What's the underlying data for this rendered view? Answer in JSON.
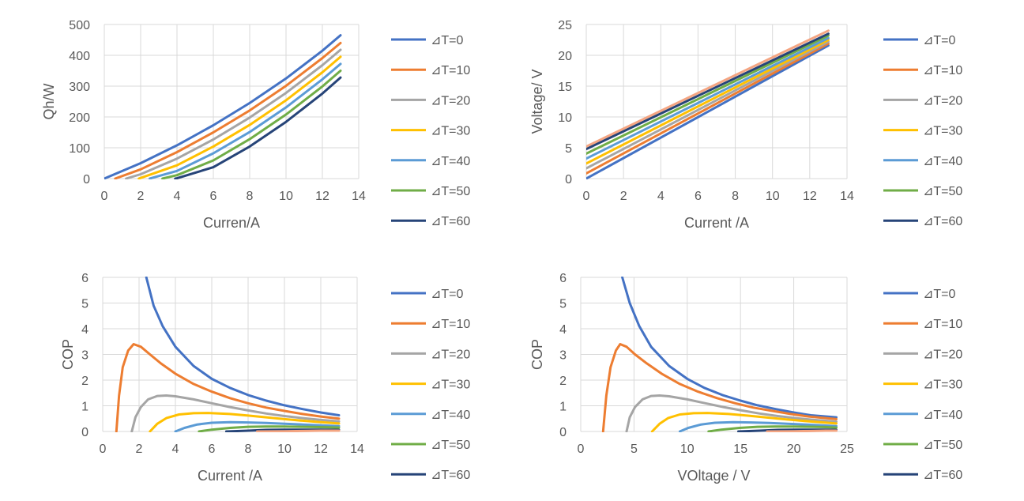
{
  "colors": {
    "dT0": "#4472C4",
    "dT10": "#ED7D31",
    "dT20": "#A5A5A5",
    "dT30": "#FFC000",
    "dT40": "#5B9BD5",
    "dT50": "#70AD47",
    "dT60": "#264478",
    "extra": "#F4A582",
    "grid": "#D9D9D9",
    "text": "#595959"
  },
  "chart_data": [
    {
      "type": "line",
      "title": "",
      "xlabel": "Curren/A",
      "ylabel": "Qh/W",
      "xlim": [
        0,
        14
      ],
      "ylim": [
        0,
        500
      ],
      "xticks": [
        "0",
        "2",
        "4",
        "6",
        "8",
        "10",
        "12",
        "14"
      ],
      "yticks": [
        "0",
        "100",
        "200",
        "300",
        "400",
        "500"
      ],
      "legend_position": "right",
      "series": [
        {
          "name": "⊿T=0",
          "color": "#4472C4",
          "x": [
            0,
            2,
            4,
            6,
            8,
            10,
            12,
            13
          ],
          "y": [
            0,
            50,
            108,
            173,
            245,
            325,
            415,
            465
          ]
        },
        {
          "name": "⊿T=10",
          "color": "#ED7D31",
          "x": [
            0.6,
            2,
            4,
            6,
            8,
            10,
            12,
            13
          ],
          "y": [
            0,
            30,
            86,
            150,
            221,
            301,
            391,
            440
          ]
        },
        {
          "name": "⊿T=20",
          "color": "#A5A5A5",
          "x": [
            1.2,
            2,
            4,
            6,
            8,
            10,
            12,
            13
          ],
          "y": [
            0,
            14,
            65,
            127,
            198,
            278,
            368,
            418
          ]
        },
        {
          "name": "⊿T=30",
          "color": "#FFC000",
          "x": [
            1.9,
            2,
            4,
            6,
            8,
            10,
            12,
            13
          ],
          "y": [
            0,
            2,
            43,
            104,
            174,
            254,
            345,
            395
          ]
        },
        {
          "name": "⊿T=40",
          "color": "#5B9BD5",
          "x": [
            2.5,
            4,
            6,
            8,
            10,
            12,
            13
          ],
          "y": [
            0,
            25,
            82,
            151,
            231,
            322,
            372
          ]
        },
        {
          "name": "⊿T=50",
          "color": "#70AD47",
          "x": [
            3.2,
            4,
            6,
            8,
            10,
            12,
            13
          ],
          "y": [
            0,
            11,
            59,
            128,
            208,
            299,
            350
          ]
        },
        {
          "name": "⊿T=60",
          "color": "#264478",
          "x": [
            3.9,
            4,
            6,
            8,
            10,
            12,
            13
          ],
          "y": [
            0,
            1,
            37,
            104,
            184,
            276,
            328
          ]
        }
      ]
    },
    {
      "type": "line",
      "title": "",
      "xlabel": "Current /A",
      "ylabel": "Voltage/ V",
      "xlim": [
        0,
        14
      ],
      "ylim": [
        0,
        25
      ],
      "xticks": [
        "0",
        "2",
        "4",
        "6",
        "8",
        "10",
        "12",
        "14"
      ],
      "yticks": [
        "0",
        "5",
        "10",
        "15",
        "20",
        "25"
      ],
      "legend_position": "right",
      "series": [
        {
          "name": "⊿T=0",
          "color": "#4472C4",
          "x": [
            0,
            13
          ],
          "y": [
            0,
            21.6
          ]
        },
        {
          "name": "⊿T=10",
          "color": "#ED7D31",
          "x": [
            0,
            13
          ],
          "y": [
            0.85,
            21.9
          ]
        },
        {
          "name": "⊿T=20",
          "color": "#A5A5A5",
          "x": [
            0,
            13
          ],
          "y": [
            1.65,
            22.2
          ]
        },
        {
          "name": "⊿T=30",
          "color": "#FFC000",
          "x": [
            0,
            13
          ],
          "y": [
            2.45,
            22.5
          ]
        },
        {
          "name": "⊿T=40",
          "color": "#5B9BD5",
          "x": [
            0,
            13
          ],
          "y": [
            3.25,
            22.8
          ]
        },
        {
          "name": "⊿T=50",
          "color": "#70AD47",
          "x": [
            0,
            13
          ],
          "y": [
            4.05,
            23.2
          ]
        },
        {
          "name": "⊿T=60",
          "color": "#264478",
          "x": [
            0,
            13
          ],
          "y": [
            4.8,
            23.5
          ]
        },
        {
          "name": "",
          "color": "#F4A582",
          "x": [
            0,
            13
          ],
          "y": [
            5.2,
            24.0
          ]
        }
      ]
    },
    {
      "type": "line",
      "title": "",
      "xlabel": "Current /A",
      "ylabel": "COP",
      "xlim": [
        0,
        14
      ],
      "ylim": [
        0,
        6
      ],
      "xticks": [
        "0",
        "2",
        "4",
        "6",
        "8",
        "10",
        "12",
        "14"
      ],
      "yticks": [
        "0",
        "1",
        "2",
        "3",
        "4",
        "5",
        "6"
      ],
      "legend_position": "right",
      "series": [
        {
          "name": "⊿T=0",
          "color": "#4472C4",
          "x": [
            2.4,
            2.8,
            3.3,
            4,
            5,
            6,
            7,
            8,
            9,
            10,
            11,
            12,
            13
          ],
          "y": [
            6,
            4.9,
            4.1,
            3.3,
            2.55,
            2.05,
            1.7,
            1.42,
            1.2,
            1.02,
            0.87,
            0.74,
            0.63
          ]
        },
        {
          "name": "⊿T=10",
          "color": "#ED7D31",
          "x": [
            0.75,
            0.9,
            1.1,
            1.4,
            1.7,
            2.1,
            2.6,
            3.2,
            4,
            5,
            6,
            7,
            8,
            9,
            10,
            11,
            12,
            13
          ],
          "y": [
            0,
            1.4,
            2.5,
            3.15,
            3.4,
            3.3,
            3.0,
            2.65,
            2.25,
            1.85,
            1.55,
            1.3,
            1.1,
            0.93,
            0.8,
            0.68,
            0.58,
            0.5
          ]
        },
        {
          "name": "⊿T=20",
          "color": "#A5A5A5",
          "x": [
            1.6,
            1.8,
            2.1,
            2.5,
            3.0,
            3.5,
            4,
            5,
            6,
            7,
            8,
            9,
            10,
            11,
            12,
            13
          ],
          "y": [
            0,
            0.55,
            0.95,
            1.25,
            1.38,
            1.4,
            1.37,
            1.25,
            1.1,
            0.95,
            0.82,
            0.7,
            0.6,
            0.52,
            0.45,
            0.39
          ]
        },
        {
          "name": "⊿T=30",
          "color": "#FFC000",
          "x": [
            2.6,
            3.0,
            3.5,
            4.2,
            5,
            5.8,
            7,
            8,
            9,
            10,
            11,
            12,
            13
          ],
          "y": [
            0,
            0.3,
            0.52,
            0.66,
            0.71,
            0.72,
            0.68,
            0.62,
            0.55,
            0.48,
            0.42,
            0.36,
            0.31
          ]
        },
        {
          "name": "⊿T=40",
          "color": "#5B9BD5",
          "x": [
            4.0,
            4.5,
            5.2,
            6,
            7,
            8,
            9,
            10,
            11,
            12,
            13
          ],
          "y": [
            0,
            0.14,
            0.27,
            0.34,
            0.36,
            0.35,
            0.33,
            0.3,
            0.27,
            0.24,
            0.21
          ]
        },
        {
          "name": "⊿T=50",
          "color": "#70AD47",
          "x": [
            5.3,
            6,
            7,
            8,
            9,
            10,
            11,
            12,
            13
          ],
          "y": [
            0,
            0.07,
            0.14,
            0.18,
            0.19,
            0.19,
            0.18,
            0.17,
            0.15
          ]
        },
        {
          "name": "⊿T=60",
          "color": "#264478",
          "x": [
            6.8,
            8,
            9,
            10,
            11,
            12,
            13
          ],
          "y": [
            0,
            0.03,
            0.06,
            0.07,
            0.07,
            0.07,
            0.06
          ]
        },
        {
          "name": "",
          "color": "#F4A582",
          "x": [
            8.5,
            10,
            11,
            12,
            13
          ],
          "y": [
            0,
            0.01,
            0.02,
            0.03,
            0.03
          ]
        }
      ]
    },
    {
      "type": "line",
      "title": "",
      "xlabel": "VOltage / V",
      "ylabel": "COP",
      "xlim": [
        0,
        25
      ],
      "ylim": [
        0,
        6
      ],
      "xticks": [
        "0",
        "5",
        "10",
        "15",
        "20",
        "25"
      ],
      "yticks": [
        "0",
        "1",
        "2",
        "3",
        "4",
        "5",
        "6"
      ],
      "legend_position": "right",
      "series": [
        {
          "name": "⊿T=0",
          "color": "#4472C4",
          "x": [
            3.9,
            4.6,
            5.5,
            6.6,
            8.3,
            10,
            11.6,
            13.3,
            15,
            16.6,
            18.3,
            20,
            21.6,
            24
          ],
          "y": [
            6,
            5.0,
            4.1,
            3.3,
            2.55,
            2.05,
            1.7,
            1.42,
            1.2,
            1.02,
            0.87,
            0.74,
            0.63,
            0.55
          ]
        },
        {
          "name": "⊿T=10",
          "color": "#ED7D31",
          "x": [
            2.1,
            2.4,
            2.8,
            3.3,
            3.7,
            4.3,
            5.1,
            6.2,
            7.6,
            9.3,
            11,
            12.8,
            14.5,
            16.2,
            18,
            19.7,
            21.4,
            24
          ],
          "y": [
            0,
            1.4,
            2.5,
            3.15,
            3.4,
            3.3,
            3.0,
            2.65,
            2.25,
            1.85,
            1.55,
            1.3,
            1.1,
            0.93,
            0.8,
            0.68,
            0.58,
            0.48
          ]
        },
        {
          "name": "⊿T=20",
          "color": "#A5A5A5",
          "x": [
            4.3,
            4.6,
            5.1,
            5.8,
            6.6,
            7.4,
            8.3,
            10,
            11.7,
            13.4,
            15.1,
            16.8,
            18.5,
            20.2,
            21.9,
            24
          ],
          "y": [
            0,
            0.55,
            0.95,
            1.25,
            1.38,
            1.4,
            1.37,
            1.25,
            1.1,
            0.95,
            0.82,
            0.7,
            0.6,
            0.52,
            0.45,
            0.38
          ]
        },
        {
          "name": "⊿T=30",
          "color": "#FFC000",
          "x": [
            6.7,
            7.4,
            8.2,
            9.3,
            10.6,
            11.9,
            13.9,
            15.6,
            17.3,
            19,
            20.7,
            22.4,
            24
          ],
          "y": [
            0,
            0.3,
            0.52,
            0.66,
            0.71,
            0.72,
            0.68,
            0.62,
            0.55,
            0.48,
            0.42,
            0.36,
            0.31
          ]
        },
        {
          "name": "⊿T=40",
          "color": "#5B9BD5",
          "x": [
            9.3,
            10.1,
            11.3,
            12.6,
            14.3,
            16,
            17.7,
            19.4,
            21.1,
            22.6,
            24
          ],
          "y": [
            0,
            0.14,
            0.27,
            0.34,
            0.36,
            0.35,
            0.33,
            0.3,
            0.27,
            0.24,
            0.21
          ]
        },
        {
          "name": "⊿T=50",
          "color": "#70AD47",
          "x": [
            12.0,
            13.2,
            14.9,
            16.6,
            18.3,
            20,
            21.7,
            23,
            24
          ],
          "y": [
            0,
            0.07,
            0.14,
            0.18,
            0.19,
            0.19,
            0.18,
            0.17,
            0.15
          ]
        },
        {
          "name": "⊿T=60",
          "color": "#264478",
          "x": [
            14.8,
            16.8,
            18.5,
            20.2,
            21.9,
            23,
            24
          ],
          "y": [
            0,
            0.03,
            0.06,
            0.07,
            0.07,
            0.07,
            0.06
          ]
        },
        {
          "name": "",
          "color": "#F4A582",
          "x": [
            17.5,
            20,
            21.7,
            23,
            24
          ],
          "y": [
            0,
            0.01,
            0.02,
            0.03,
            0.03
          ]
        }
      ]
    }
  ]
}
